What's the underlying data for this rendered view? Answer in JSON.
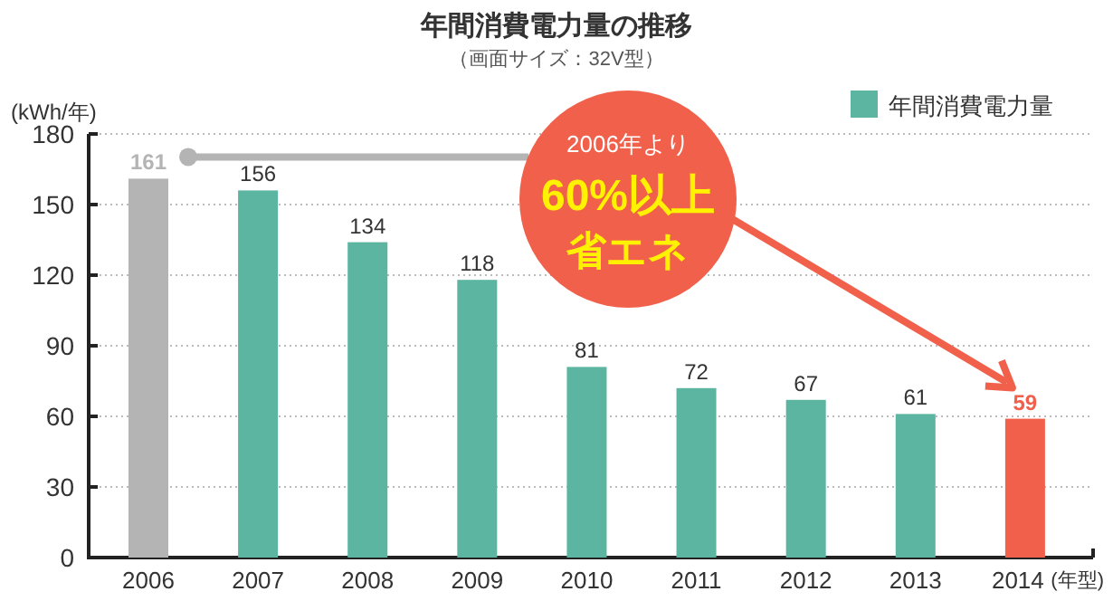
{
  "chart_data": {
    "type": "bar",
    "title": "年間消費電力量の推移",
    "subtitle": "（画面サイズ：32V型）",
    "ylabel": "(kWh/年)",
    "xlabel": "(年型)",
    "categories": [
      "2006",
      "2007",
      "2008",
      "2009",
      "2010",
      "2011",
      "2012",
      "2013",
      "2014"
    ],
    "series": [
      {
        "name": "年間消費電力量",
        "color": "#5bb5a0",
        "colors": [
          "#b4b4b4",
          "#5bb5a0",
          "#5bb5a0",
          "#5bb5a0",
          "#5bb5a0",
          "#5bb5a0",
          "#5bb5a0",
          "#5bb5a0",
          "#f0604b"
        ],
        "values": [
          161,
          156,
          134,
          118,
          81,
          72,
          67,
          61,
          59
        ]
      }
    ],
    "ylim": [
      0,
      180
    ],
    "yticks": [
      0,
      30,
      60,
      90,
      120,
      150,
      180
    ],
    "grid": "y",
    "legend": "top right",
    "data_labels": true,
    "annotations": [
      "2006年より",
      "60%以上",
      "省エネ"
    ]
  }
}
